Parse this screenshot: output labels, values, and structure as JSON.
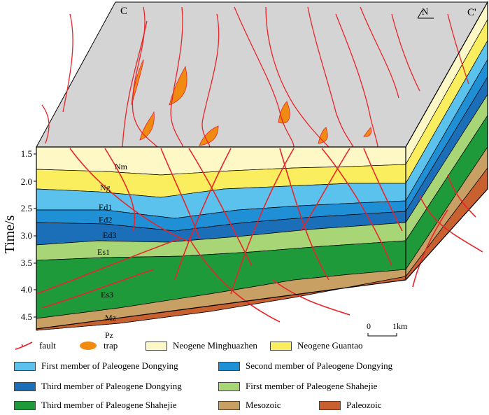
{
  "colors": {
    "nm": "#fdf8c6",
    "ng": "#fbee5e",
    "ed1": "#5bc2ee",
    "ed2": "#1f8fd6",
    "ed3": "#1a6fb8",
    "es1": "#a8d676",
    "es3": "#1f9a3a",
    "mz": "#c8a064",
    "pz": "#c8602f",
    "fault": "#e8252a",
    "trap": "#f08a10",
    "top": "#d4d4d4"
  },
  "corner_labels": {
    "left": "C",
    "right": "C'",
    "north": "N"
  },
  "axis": {
    "title": "Time/s",
    "ticks": [
      "1.5",
      "2.0",
      "2.5",
      "3.0",
      "3.5",
      "4.0",
      "4.5"
    ]
  },
  "layer_labels": {
    "nm": "Nm",
    "ng": "Ng",
    "ed1": "Ed1",
    "ed2": "Ed2",
    "ed3": "Ed3",
    "es1": "Es1",
    "es3": "Es3",
    "mz": "Mz",
    "pz": "Pz"
  },
  "scale_bar": {
    "start": "0",
    "end": "1km"
  },
  "legend": [
    {
      "key": "fault",
      "label": "fault"
    },
    {
      "key": "trap",
      "label": "trap"
    },
    {
      "key": "nm",
      "label": "Neogene Minghuazhen"
    },
    {
      "key": "ng",
      "label": "Neogene Guantao"
    },
    {
      "key": "ed1",
      "label": "First member of Paleogene Dongying"
    },
    {
      "key": "ed2",
      "label": "Second member of Paleogene Dongying"
    },
    {
      "key": "ed3",
      "label": "Third member of Paleogene Dongying"
    },
    {
      "key": "es1",
      "label": "First member of Paleogene Shahejie"
    },
    {
      "key": "es3",
      "label": "Third member of Paleogene Shahejie"
    },
    {
      "key": "mz",
      "label": "Mesozoic"
    },
    {
      "key": "pz",
      "label": "Paleozoic"
    }
  ]
}
